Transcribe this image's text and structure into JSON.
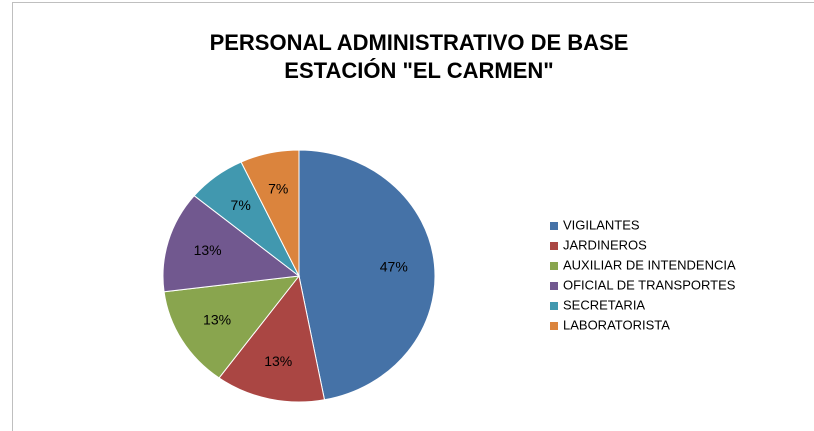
{
  "chart_data": {
    "type": "pie",
    "title": [
      "PERSONAL ADMINISTRATIVO DE BASE",
      "ESTACIÓN \"EL CARMEN\""
    ],
    "categories": [
      "VIGILANTES",
      "JARDINEROS",
      "AUXILIAR DE INTENDENCIA",
      "OFICIAL DE TRANSPORTES",
      "SECRETARIA",
      "LABORATORISTA"
    ],
    "values": [
      47,
      13,
      13,
      13,
      7,
      7
    ],
    "value_labels": [
      "47%",
      "13%",
      "13%",
      "13%",
      "7%",
      "7%"
    ],
    "colors": [
      "#4572a7",
      "#aa4643",
      "#89a54e",
      "#71588f",
      "#4198af",
      "#db843d"
    ],
    "legend": "right"
  }
}
